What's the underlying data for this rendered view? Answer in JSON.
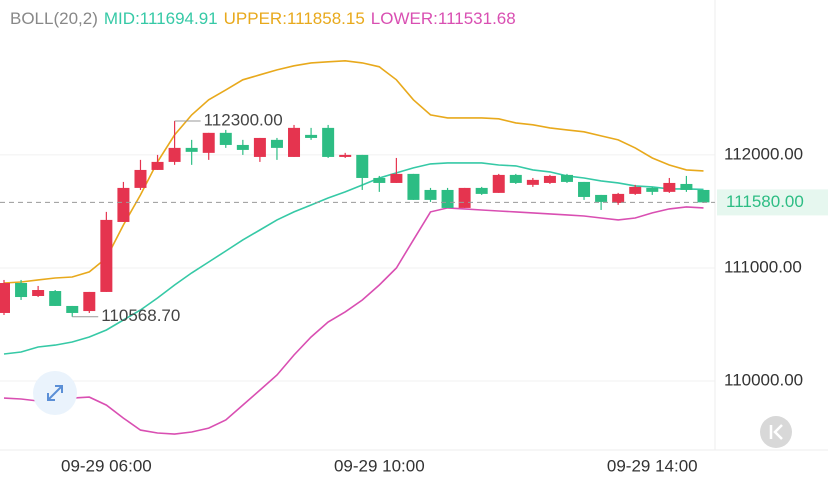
{
  "chart_data": {
    "type": "candlestick",
    "indicator": "BOLL(20,2)",
    "categories": [
      null,
      null,
      null,
      null,
      null,
      null,
      "09-29 06:00",
      null,
      null,
      null,
      null,
      null,
      null,
      null,
      null,
      null,
      null,
      null,
      null,
      null,
      null,
      null,
      "09-29 10:00",
      null,
      null,
      null,
      null,
      null,
      null,
      null,
      null,
      null,
      null,
      null,
      null,
      null,
      null,
      null,
      "09-29 14:00",
      null,
      null,
      null
    ],
    "open": [
      110602,
      110867,
      110752,
      110796,
      110664,
      110619,
      110788,
      111407,
      111708,
      111867,
      111938,
      112062,
      112018,
      112195,
      112088,
      111982,
      112133,
      111982,
      112177,
      112239,
      111982,
      112000,
      111796,
      111752,
      111832,
      111690,
      111690,
      111531,
      111708,
      111664,
      111823,
      111735,
      111752,
      111823,
      111761,
      111646,
      111575,
      111655,
      111708,
      111673,
      111743,
      111690
    ],
    "high": [
      110894,
      110894,
      110841,
      110805,
      110664,
      110788,
      111496,
      111761,
      111956,
      112000,
      112300,
      112133,
      112195,
      112221,
      112133,
      112150,
      112150,
      112265,
      112239,
      112265,
      112018,
      112000,
      111814,
      111973,
      111832,
      111708,
      111708,
      111708,
      111717,
      111832,
      111832,
      111796,
      111823,
      111832,
      111761,
      111646,
      111664,
      111735,
      111717,
      111796,
      111814,
      111690
    ],
    "low": [
      110584,
      110717,
      110743,
      110664,
      110568.7,
      110602,
      110788,
      111407,
      111690,
      111867,
      111912,
      111912,
      111956,
      112062,
      112000,
      111938,
      111956,
      111982,
      112133,
      111973,
      111973,
      111690,
      111673,
      111752,
      111602,
      111584,
      111531,
      111531,
      111646,
      111664,
      111743,
      111717,
      111743,
      111752,
      111602,
      111513,
      111558,
      111646,
      111646,
      111664,
      111673,
      111575
    ],
    "close": [
      110867,
      110743,
      110805,
      110664,
      110602,
      110788,
      111425,
      111708,
      111867,
      111938,
      112062,
      112027,
      112195,
      112088,
      112044,
      112150,
      112062,
      112239,
      112150,
      111982,
      112000,
      111796,
      111752,
      111832,
      111602,
      111602,
      111531,
      111708,
      111655,
      111823,
      111752,
      111779,
      111814,
      111761,
      111628,
      111584,
      111655,
      111717,
      111673,
      111752,
      111690,
      111580
    ],
    "up_color": "#e5344f",
    "down_color": "#2dbd84",
    "series": [
      {
        "name": "MID",
        "color": "#36c9a6",
        "values": [
          110239,
          110257,
          110301,
          110318,
          110345,
          110389,
          110451,
          110540,
          110628,
          110734,
          110849,
          110956,
          111053,
          111150,
          111248,
          111336,
          111425,
          111496,
          111557,
          111619,
          111673,
          111734,
          111796,
          111841,
          111885,
          111920,
          111929,
          111929,
          111929,
          111911,
          111903,
          111867,
          111850,
          111814,
          111796,
          111770,
          111752,
          111726,
          111717,
          111699,
          111699,
          111694.91
        ]
      },
      {
        "name": "UPPER",
        "color": "#e8a91c",
        "values": [
          110867,
          110876,
          110894,
          110911,
          110920,
          110965,
          111088,
          111380,
          111646,
          111938,
          112177,
          112354,
          112487,
          112575,
          112664,
          112708,
          112752,
          112788,
          112814,
          112823,
          112832,
          112814,
          112779,
          112664,
          112487,
          112354,
          112327,
          112327,
          112327,
          112319,
          112283,
          112266,
          112239,
          112221,
          112204,
          112168,
          112133,
          112062,
          111973,
          111911,
          111867,
          111858.15
        ]
      },
      {
        "name": "LOWER",
        "color": "#d94fb2",
        "values": [
          109849,
          109841,
          109823,
          109832,
          109849,
          109858,
          109787,
          109672,
          109566,
          109540,
          109531,
          109549,
          109584,
          109655,
          109787,
          109920,
          110053,
          110230,
          110389,
          110522,
          110611,
          110717,
          110849,
          111000,
          111248,
          111496,
          111531,
          111522,
          111513,
          111504,
          111496,
          111487,
          111478,
          111469,
          111460,
          111442,
          111425,
          111442,
          111487,
          111522,
          111540,
          111531.68
        ]
      }
    ],
    "high_label": {
      "value": 112300,
      "label": "112300.00"
    },
    "low_label": {
      "value": 110568.7,
      "label": "110568.70"
    },
    "last_price": {
      "value": 111580,
      "label": "111580.00"
    },
    "ylim": [
      109390,
      113370
    ],
    "yticks": [
      {
        "value": 110000,
        "label": "110000.00"
      },
      {
        "value": 111000,
        "label": "111000.00"
      },
      {
        "value": 112000,
        "label": "112000.00"
      }
    ],
    "grid": true
  }
}
